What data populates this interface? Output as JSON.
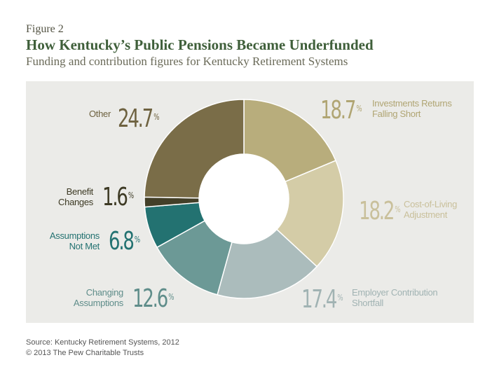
{
  "header": {
    "figure_label": "Figure 2",
    "title": "How Kentucky’s Public Pensions Became Underfunded",
    "subtitle": "Funding and contribution figures for Kentucky Retirement Systems"
  },
  "chart_data": {
    "type": "pie",
    "donut": true,
    "categories": [
      "Investments Returns Falling Short",
      "Cost-of-Living Adjustment",
      "Employer Contribution Shortfall",
      "Changing Assumptions",
      "Assumptions Not Met",
      "Benefit Changes",
      "Other"
    ],
    "values": [
      18.7,
      18.2,
      17.4,
      12.6,
      6.8,
      1.6,
      24.7
    ],
    "unit": "%",
    "colors": [
      "#b8ad7c",
      "#d4cca7",
      "#abbcbc",
      "#6c9996",
      "#237271",
      "#433f28",
      "#7a6d48"
    ],
    "label_colors": [
      "#b0a573",
      "#c9c09b",
      "#a1b3b3",
      "#5f8d8a",
      "#237271",
      "#3d3a24",
      "#6e6240"
    ],
    "label_lines": [
      [
        "Investments Returns",
        "Falling Short"
      ],
      [
        "Cost-of-Living",
        "Adjustment"
      ],
      [
        "Employer Contribution",
        "Shortfall"
      ],
      [
        "Changing",
        "Assumptions"
      ],
      [
        "Assumptions",
        "Not Met"
      ],
      [
        "Benefit",
        "Changes"
      ],
      [
        "Other"
      ]
    ],
    "value_labels": [
      "18.7",
      "18.2",
      "17.4",
      "12.6",
      "6.8",
      "1.6",
      "24.7"
    ]
  },
  "footer": {
    "source": "Source: Kentucky Retirement Systems, 2012",
    "copyright": "© 2013 The Pew Charitable Trusts"
  }
}
